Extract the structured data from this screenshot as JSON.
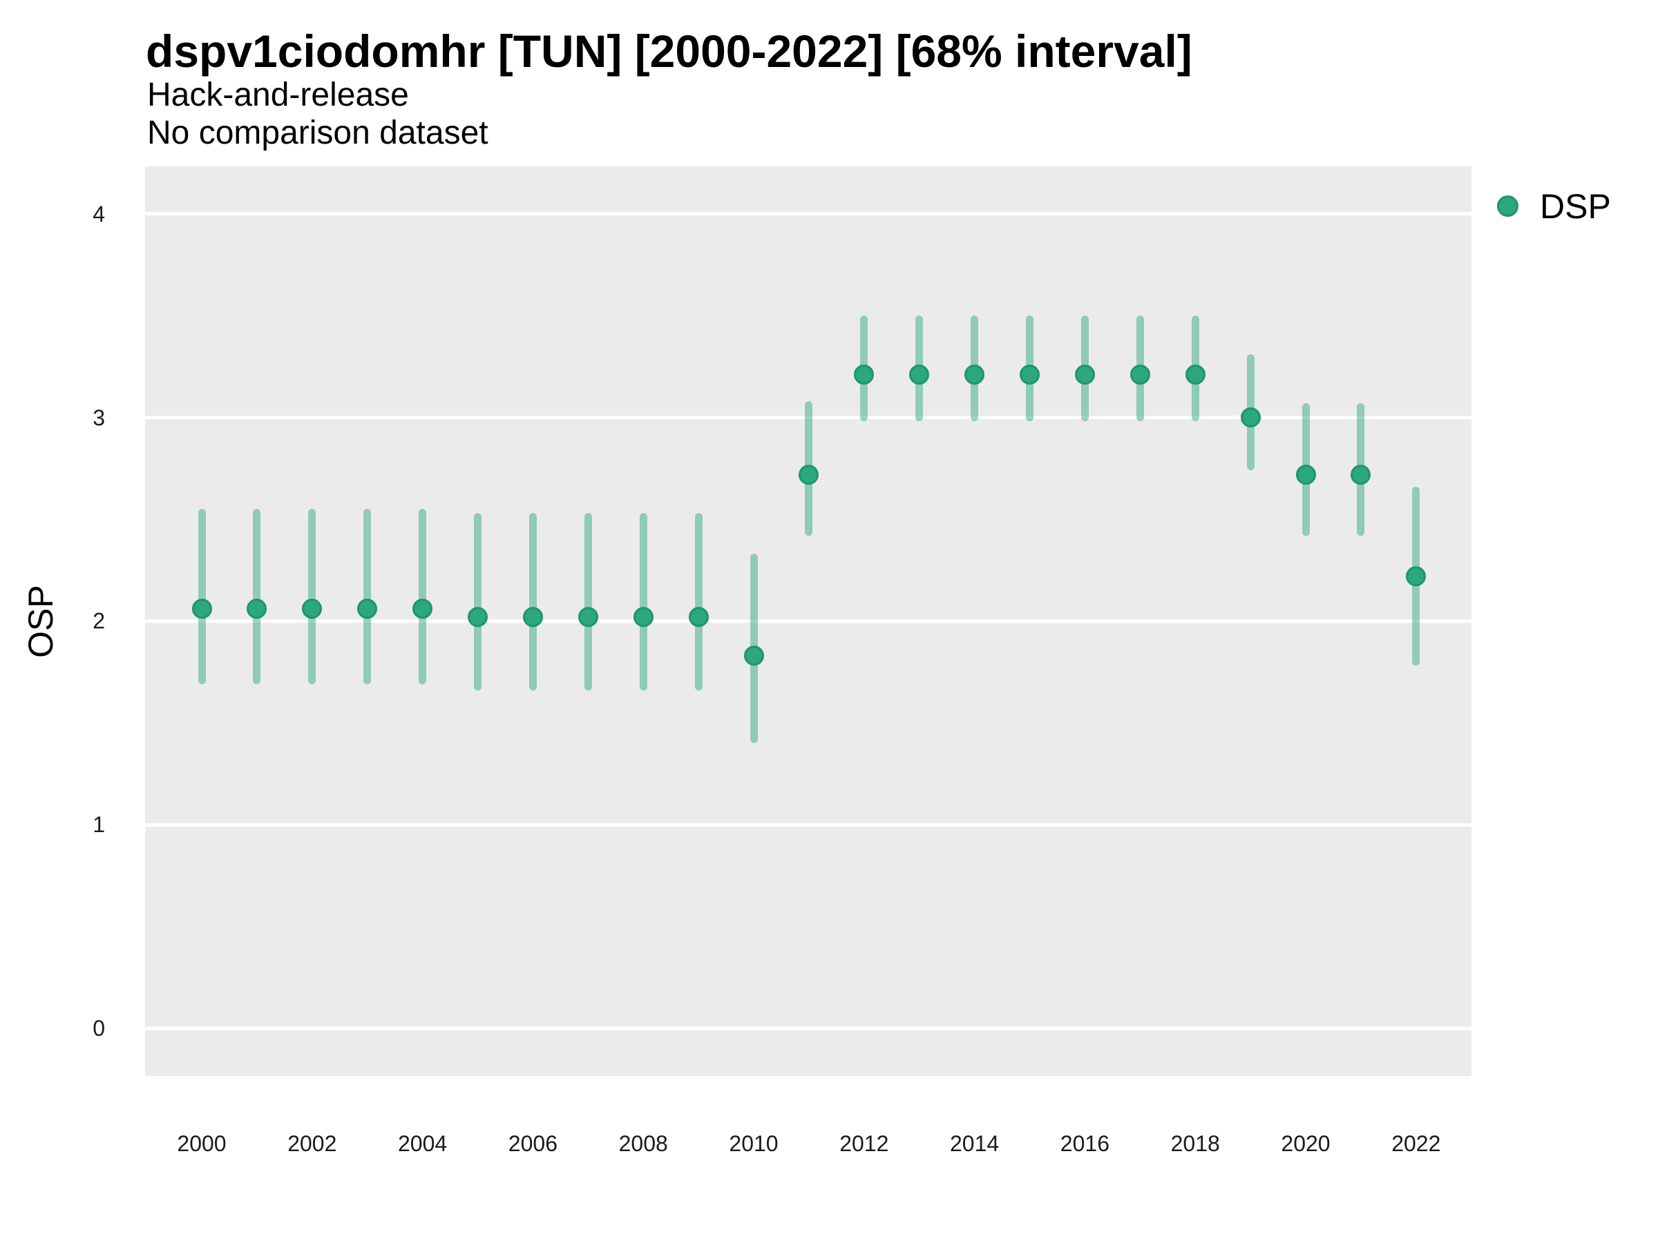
{
  "title": "dspv1ciodomhr [TUN] [2000-2022] [68% interval]",
  "subtitle": "Hack-and-release",
  "note": "No comparison dataset",
  "legend": {
    "label": "DSP"
  },
  "y_axis": {
    "label": "OSP",
    "ticks": [
      "0",
      "1",
      "2",
      "3",
      "4"
    ]
  },
  "x_axis": {
    "ticks": [
      "2000",
      "2002",
      "2004",
      "2006",
      "2008",
      "2010",
      "2012",
      "2014",
      "2016",
      "2018",
      "2020",
      "2022"
    ]
  },
  "colors": {
    "point_fill": "#2ba87d",
    "point_border": "#1e9669",
    "interval_bar": "rgba(43, 168, 125, 0.48)",
    "panel_background": "#ebebeb",
    "gridline": "#ffffff",
    "text": "#000000"
  },
  "chart_data": {
    "type": "scatter",
    "title": "dspv1ciodomhr [TUN] [2000-2022] [68% interval]",
    "subtitle": "Hack-and-release",
    "note": "No comparison dataset",
    "xlabel": "",
    "ylabel": "OSP",
    "ylim": [
      -0.23,
      4.23
    ],
    "x_range": [
      2000,
      2022
    ],
    "interval": "68%",
    "legend_position": "right-top",
    "grid": "major-y-only",
    "series": [
      {
        "name": "DSP",
        "points": [
          {
            "year": 2000,
            "value": 2.06,
            "lo": 1.69,
            "hi": 2.55
          },
          {
            "year": 2001,
            "value": 2.06,
            "lo": 1.69,
            "hi": 2.55
          },
          {
            "year": 2002,
            "value": 2.06,
            "lo": 1.69,
            "hi": 2.55
          },
          {
            "year": 2003,
            "value": 2.06,
            "lo": 1.69,
            "hi": 2.55
          },
          {
            "year": 2004,
            "value": 2.06,
            "lo": 1.69,
            "hi": 2.55
          },
          {
            "year": 2005,
            "value": 2.02,
            "lo": 1.66,
            "hi": 2.53
          },
          {
            "year": 2006,
            "value": 2.02,
            "lo": 1.66,
            "hi": 2.53
          },
          {
            "year": 2007,
            "value": 2.02,
            "lo": 1.66,
            "hi": 2.53
          },
          {
            "year": 2008,
            "value": 2.02,
            "lo": 1.66,
            "hi": 2.53
          },
          {
            "year": 2009,
            "value": 2.02,
            "lo": 1.66,
            "hi": 2.53
          },
          {
            "year": 2010,
            "value": 1.83,
            "lo": 1.4,
            "hi": 2.33
          },
          {
            "year": 2011,
            "value": 2.72,
            "lo": 2.42,
            "hi": 3.08
          },
          {
            "year": 2012,
            "value": 3.21,
            "lo": 2.98,
            "hi": 3.5
          },
          {
            "year": 2013,
            "value": 3.21,
            "lo": 2.98,
            "hi": 3.5
          },
          {
            "year": 2014,
            "value": 3.21,
            "lo": 2.98,
            "hi": 3.5
          },
          {
            "year": 2015,
            "value": 3.21,
            "lo": 2.98,
            "hi": 3.5
          },
          {
            "year": 2016,
            "value": 3.21,
            "lo": 2.98,
            "hi": 3.5
          },
          {
            "year": 2017,
            "value": 3.21,
            "lo": 2.98,
            "hi": 3.5
          },
          {
            "year": 2018,
            "value": 3.21,
            "lo": 2.98,
            "hi": 3.5
          },
          {
            "year": 2019,
            "value": 3.0,
            "lo": 2.74,
            "hi": 3.31
          },
          {
            "year": 2020,
            "value": 2.72,
            "lo": 2.42,
            "hi": 3.07
          },
          {
            "year": 2021,
            "value": 2.72,
            "lo": 2.42,
            "hi": 3.07
          },
          {
            "year": 2022,
            "value": 2.22,
            "lo": 1.78,
            "hi": 2.66
          }
        ]
      }
    ]
  }
}
